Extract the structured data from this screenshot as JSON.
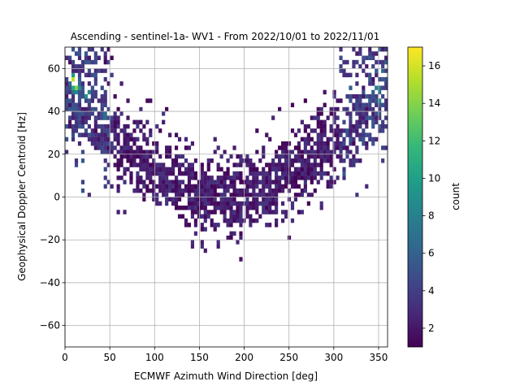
{
  "chart_data": {
    "type": "heatmap",
    "title": "Ascending - sentinel-1a- WV1 - From 2022/10/01 to 2022/11/01",
    "xlabel": "ECMWF Azimuth Wind Direction [deg]",
    "ylabel": "Geophysical Doppler Centroid [Hz]",
    "xlim": [
      0,
      360
    ],
    "ylim": [
      -70,
      70
    ],
    "x_ticks": [
      0,
      50,
      100,
      150,
      200,
      250,
      300,
      350
    ],
    "y_ticks": [
      -60,
      -40,
      -20,
      0,
      20,
      40,
      60
    ],
    "grid": true,
    "bin_size": {
      "x": 3.6,
      "y": 2
    },
    "colorbar": {
      "label": "count",
      "range": [
        1,
        17
      ],
      "ticks": [
        2,
        4,
        6,
        8,
        10,
        12,
        14,
        16
      ],
      "colormap": "viridis"
    },
    "colormap_stops": [
      "#440154",
      "#482878",
      "#3e4989",
      "#31688e",
      "#26828e",
      "#1f9e89",
      "#35b779",
      "#6ece58",
      "#b5de2b",
      "#fde725"
    ],
    "distribution": {
      "shape": "V-shaped band",
      "center_direction_deg": 180,
      "center_doppler_hz": 0,
      "edge_doppler_hz": 48,
      "band_half_width_hz": 11,
      "lowest_values_hz": -30,
      "hotspots": [
        {
          "x_deg": 10,
          "y_hz": 55,
          "count": 15
        },
        {
          "x_deg": 12,
          "y_hz": 51,
          "count": 13
        },
        {
          "x_deg": 25,
          "y_hz": 48,
          "count": 10
        },
        {
          "x_deg": 348,
          "y_hz": 50,
          "count": 9
        },
        {
          "x_deg": 352,
          "y_hz": 45,
          "count": 8
        },
        {
          "x_deg": 45,
          "y_hz": 38,
          "count": 7
        }
      ]
    }
  }
}
